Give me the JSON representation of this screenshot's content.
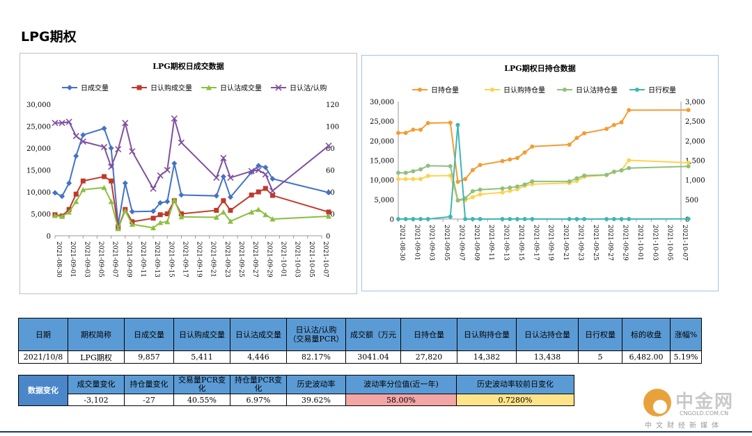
{
  "page": {
    "title": "LPG期权"
  },
  "chart_data": [
    {
      "type": "line",
      "title": "LPG期权日成交数据",
      "x": [
        "2021-08-30",
        "2021-08-31",
        "2021-09-01",
        "2021-09-02",
        "2021-09-03",
        "2021-09-06",
        "2021-09-07",
        "2021-09-08",
        "2021-09-09",
        "2021-09-10",
        "2021-09-13",
        "2021-09-14",
        "2021-09-15",
        "2021-09-16",
        "2021-09-17",
        "2021-09-22",
        "2021-09-23",
        "2021-09-24",
        "2021-09-27",
        "2021-09-28",
        "2021-09-29",
        "2021-09-30",
        "2021-10-08"
      ],
      "xticks": [
        "2021-08-30",
        "2021-09-01",
        "2021-09-03",
        "2021-09-05",
        "2021-09-07",
        "2021-09-09",
        "2021-09-11",
        "2021-09-13",
        "2021-09-15",
        "2021-09-17",
        "2021-09-19",
        "2021-09-21",
        "2021-09-23",
        "2021-09-25",
        "2021-09-27",
        "2021-09-29",
        "2021-10-01",
        "2021-10-03",
        "2021-10-05",
        "2021-10-07"
      ],
      "ylim": [
        0,
        30000
      ],
      "y2lim": [
        0,
        120
      ],
      "yticks": [
        "0",
        "5,000",
        "10,000",
        "15,000",
        "20,000",
        "25,000",
        "30,000"
      ],
      "y2ticks": [
        "0",
        "20",
        "40",
        "60",
        "80",
        "100",
        "120"
      ],
      "series": [
        {
          "name": "日成交量",
          "axis": "left",
          "color": "#4472c4",
          "marker": "diamond",
          "values": [
            9800,
            9000,
            12000,
            18200,
            23000,
            24500,
            20000,
            2500,
            12000,
            5500,
            5600,
            7500,
            7800,
            16500,
            9300,
            9100,
            13500,
            8800,
            14500,
            16000,
            15600,
            13000,
            9857
          ]
        },
        {
          "name": "日认购成交量",
          "axis": "left",
          "color": "#c0392b",
          "marker": "square",
          "values": [
            4800,
            4500,
            6000,
            9500,
            12500,
            13500,
            12500,
            1800,
            6000,
            3200,
            4000,
            4800,
            5000,
            8000,
            5000,
            5800,
            8000,
            5800,
            9300,
            10000,
            10800,
            9200,
            5411
          ]
        },
        {
          "name": "日认沽成交量",
          "axis": "left",
          "color": "#8bbf3f",
          "marker": "triangle",
          "values": [
            4600,
            4400,
            5400,
            7800,
            10500,
            11000,
            7800,
            1600,
            5700,
            2600,
            1800,
            3000,
            3200,
            8200,
            4300,
            4200,
            5400,
            3300,
            5400,
            6000,
            4800,
            3800,
            4446
          ]
        },
        {
          "name": "日认沽/认购",
          "axis": "right",
          "color": "#7f4fa0",
          "marker": "x",
          "values": [
            103,
            103,
            104,
            91,
            86,
            81,
            63,
            79,
            103,
            77,
            43,
            55,
            60,
            107,
            85,
            53,
            71,
            53,
            59,
            60,
            56,
            41,
            82.17
          ]
        }
      ]
    },
    {
      "type": "line",
      "title": "LPG期权日持仓数据",
      "x": [
        "2021-08-30",
        "2021-08-31",
        "2021-09-01",
        "2021-09-02",
        "2021-09-03",
        "2021-09-06",
        "2021-09-07",
        "2021-09-08",
        "2021-09-09",
        "2021-09-10",
        "2021-09-13",
        "2021-09-14",
        "2021-09-15",
        "2021-09-16",
        "2021-09-17",
        "2021-09-22",
        "2021-09-23",
        "2021-09-24",
        "2021-09-27",
        "2021-09-28",
        "2021-09-29",
        "2021-09-30",
        "2021-10-08"
      ],
      "xticks": [
        "2021-08-30",
        "2021-09-01",
        "2021-09-03",
        "2021-09-05",
        "2021-09-07",
        "2021-09-09",
        "2021-09-11",
        "2021-09-13",
        "2021-09-15",
        "2021-09-17",
        "2021-09-19",
        "2021-09-21",
        "2021-09-23",
        "2021-09-25",
        "2021-09-27",
        "2021-09-29",
        "2021-10-01",
        "2021-10-03",
        "2021-10-05",
        "2021-10-07"
      ],
      "ylim": [
        0,
        30000
      ],
      "y2lim": [
        0,
        3000
      ],
      "yticks": [
        "0",
        "5,000",
        "10,000",
        "15,000",
        "20,000",
        "25,000",
        "30,000"
      ],
      "y2ticks": [
        "0",
        "500",
        "1,000",
        "1,500",
        "2,000",
        "2,500",
        "3,000"
      ],
      "series": [
        {
          "name": "日持仓量",
          "axis": "left",
          "color": "#f39c32",
          "marker": "circle",
          "values": [
            22000,
            22000,
            22800,
            22800,
            24500,
            24600,
            9500,
            10200,
            12500,
            13800,
            14800,
            15200,
            15600,
            17000,
            18500,
            19000,
            20700,
            21900,
            23000,
            24000,
            24700,
            27800,
            27820
          ]
        },
        {
          "name": "日认购持仓量",
          "axis": "left",
          "color": "#ffd24d",
          "marker": "circle",
          "values": [
            10200,
            10200,
            10200,
            10200,
            11000,
            11100,
            4700,
            4800,
            5600,
            6300,
            6800,
            7200,
            7600,
            8500,
            8900,
            9200,
            9700,
            10800,
            11200,
            12000,
            12500,
            15000,
            14382
          ]
        },
        {
          "name": "日认沽持仓量",
          "axis": "left",
          "color": "#8ec07c",
          "marker": "circle",
          "values": [
            11800,
            11800,
            12200,
            12700,
            13600,
            13500,
            4800,
            5300,
            7100,
            7500,
            7800,
            8000,
            8300,
            8800,
            9600,
            9600,
            10400,
            11100,
            11300,
            12100,
            12400,
            13000,
            13438
          ]
        },
        {
          "name": "日行权量",
          "axis": "right",
          "color": "#3fb5b5",
          "marker": "circle",
          "values": [
            0,
            0,
            0,
            0,
            0,
            60,
            2400,
            0,
            0,
            0,
            0,
            0,
            0,
            0,
            0,
            0,
            0,
            0,
            0,
            0,
            0,
            0,
            5
          ]
        }
      ]
    }
  ],
  "table1": {
    "headers": [
      "日期",
      "期权简称",
      "日成交量",
      "日认购成交量",
      "日认沽成交量",
      "日认沽/认购（交易量PCR）",
      "成交额（万元",
      "日持仓量",
      "日认购持仓量",
      "日认沽持仓量",
      "日行权量",
      "标的收盘",
      "涨幅%"
    ],
    "row": [
      "2021/10/8",
      "LPG期权",
      "9,857",
      "5,411",
      "4,446",
      "82.17%",
      "3041.04",
      "27,820",
      "14,382",
      "13,438",
      "5",
      "6,482.00",
      "5.19%"
    ]
  },
  "table2": {
    "row_label": "数据变化",
    "headers": [
      "成交量变化",
      "持仓量变化",
      "交易量PCR变化",
      "持仓量PCR变化",
      "历史波动率",
      "波动率分位值(近一年)",
      "历史波动率较前日变化"
    ],
    "row": [
      "-3,102",
      "-27",
      "40.55%",
      "6.97%",
      "39.62%",
      "58.00%",
      "0.7280%"
    ],
    "colors": {
      "header": "#5b9bd5",
      "percentile_bg": "#f4a6a6",
      "change_bg": "#ffe48a"
    }
  },
  "watermark": {
    "name": "中金网",
    "url": "CNGOLD.COM.CN",
    "slogan": "中文财经新媒体"
  }
}
